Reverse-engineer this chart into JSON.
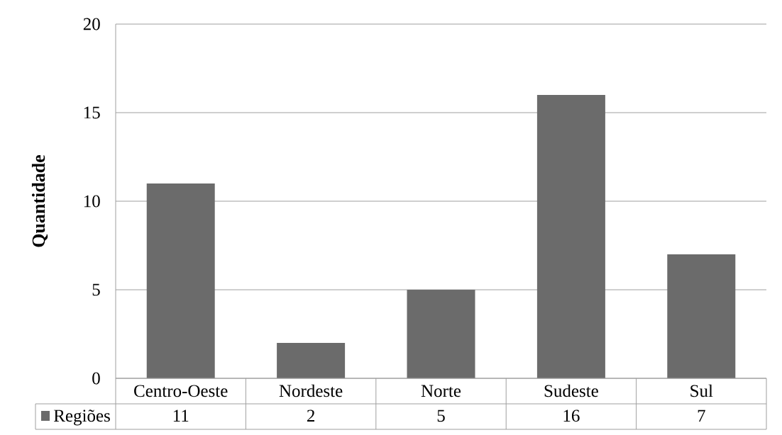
{
  "chart_data": {
    "type": "bar",
    "ylabel": "Quantidade",
    "categories": [
      "Centro-Oeste",
      "Nordeste",
      "Norte",
      "Sudeste",
      "Sul"
    ],
    "series": [
      {
        "name": "Regiões",
        "color": "#6b6b6b",
        "values": [
          11,
          2,
          5,
          16,
          7
        ]
      }
    ],
    "ylim": [
      0,
      20
    ],
    "yticks": [
      0,
      5,
      10,
      15,
      20
    ],
    "grid": "y",
    "legend": "bottom",
    "data_labels": true
  }
}
